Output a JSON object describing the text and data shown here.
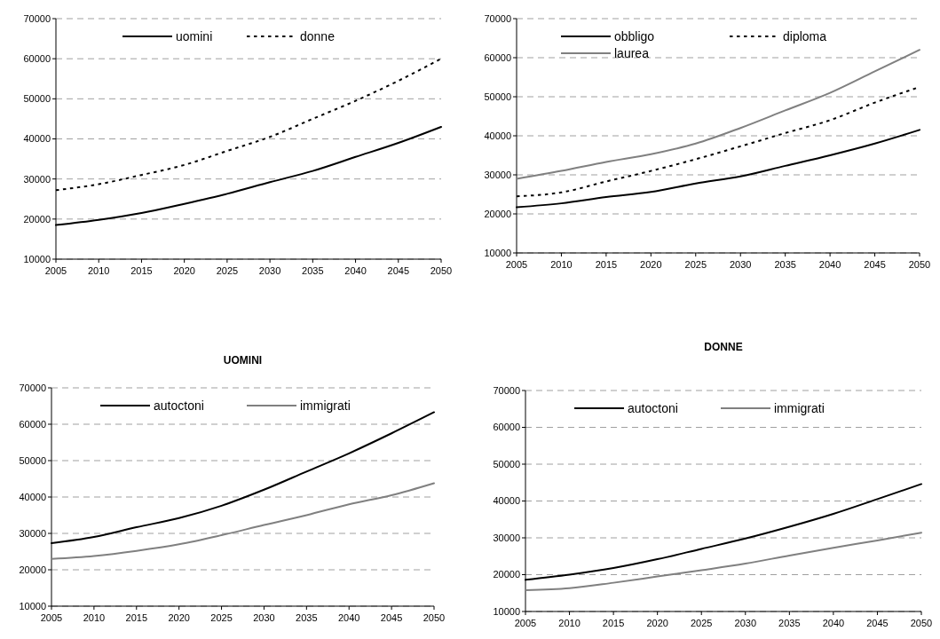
{
  "chart_data": [
    {
      "type": "line",
      "x": [
        2005,
        2010,
        2015,
        2020,
        2025,
        2030,
        2035,
        2040,
        2045,
        2050
      ],
      "xlim": [
        2005,
        2050
      ],
      "xticks": [
        2005,
        2010,
        2015,
        2020,
        2025,
        2030,
        2035,
        2040,
        2045,
        2050
      ],
      "ylim": [
        10000,
        70000
      ],
      "yticks": [
        10000,
        20000,
        30000,
        40000,
        50000,
        60000,
        70000
      ],
      "grid": "y",
      "legend": "top",
      "series": [
        {
          "name": "uomini",
          "color": "#000000",
          "line_style": "solid",
          "values": [
            18500,
            19800,
            21500,
            23800,
            26300,
            29200,
            32000,
            35500,
            39000,
            43000
          ]
        },
        {
          "name": "donne",
          "color": "#000000",
          "line_style": "dotted",
          "values": [
            27200,
            28700,
            31000,
            33500,
            37000,
            40500,
            45000,
            49500,
            54500,
            60000
          ]
        }
      ]
    },
    {
      "type": "line",
      "x": [
        2005,
        2010,
        2015,
        2020,
        2025,
        2030,
        2035,
        2040,
        2045,
        2050
      ],
      "xlim": [
        2005,
        2050
      ],
      "xticks": [
        2005,
        2010,
        2015,
        2020,
        2025,
        2030,
        2035,
        2040,
        2045,
        2050
      ],
      "ylim": [
        10000,
        70000
      ],
      "yticks": [
        10000,
        20000,
        30000,
        40000,
        50000,
        60000,
        70000
      ],
      "grid": "y",
      "legend": "top",
      "series": [
        {
          "name": "obbligo",
          "color": "#000000",
          "line_style": "solid",
          "values": [
            21700,
            22700,
            24300,
            25600,
            27800,
            29600,
            32300,
            35000,
            38000,
            41500
          ]
        },
        {
          "name": "diploma",
          "color": "#000000",
          "line_style": "dotted",
          "values": [
            24500,
            25500,
            28300,
            31000,
            34000,
            37300,
            40700,
            44000,
            48500,
            52500
          ]
        },
        {
          "name": "laurea",
          "color": "#808080",
          "line_style": "solid",
          "values": [
            29000,
            31000,
            33300,
            35300,
            38000,
            42000,
            46500,
            51000,
            56500,
            62000
          ]
        }
      ]
    },
    {
      "type": "line",
      "title": "UOMINI",
      "x": [
        2005,
        2010,
        2015,
        2020,
        2025,
        2030,
        2035,
        2040,
        2045,
        2050
      ],
      "xlim": [
        2005,
        2050
      ],
      "xticks": [
        2005,
        2010,
        2015,
        2020,
        2025,
        2030,
        2035,
        2040,
        2045,
        2050
      ],
      "ylim": [
        10000,
        70000
      ],
      "yticks": [
        10000,
        20000,
        30000,
        40000,
        50000,
        60000,
        70000
      ],
      "grid": "y",
      "legend": "top",
      "series": [
        {
          "name": "autoctoni",
          "color": "#000000",
          "line_style": "solid",
          "values": [
            27300,
            29000,
            31700,
            34200,
            37600,
            42000,
            47000,
            52000,
            57500,
            63300
          ]
        },
        {
          "name": "immigrati",
          "color": "#808080",
          "line_style": "solid",
          "values": [
            23000,
            23800,
            25200,
            27000,
            29500,
            32300,
            35000,
            38000,
            40500,
            43800
          ]
        }
      ]
    },
    {
      "type": "line",
      "title": "DONNE",
      "x": [
        2005,
        2010,
        2015,
        2020,
        2025,
        2030,
        2035,
        2040,
        2045,
        2050
      ],
      "xlim": [
        2005,
        2050
      ],
      "xticks": [
        2005,
        2010,
        2015,
        2020,
        2025,
        2030,
        2035,
        2040,
        2045,
        2050
      ],
      "ylim": [
        10000,
        70000
      ],
      "yticks": [
        10000,
        20000,
        30000,
        40000,
        50000,
        60000,
        70000
      ],
      "grid": "y",
      "legend": "top",
      "series": [
        {
          "name": "autoctoni",
          "color": "#000000",
          "line_style": "solid",
          "values": [
            18600,
            20000,
            21800,
            24200,
            27000,
            29800,
            33000,
            36500,
            40500,
            44600
          ]
        },
        {
          "name": "immigrati",
          "color": "#808080",
          "line_style": "solid",
          "values": [
            15800,
            16300,
            17800,
            19500,
            21200,
            23000,
            25200,
            27300,
            29300,
            31400
          ]
        }
      ]
    }
  ]
}
